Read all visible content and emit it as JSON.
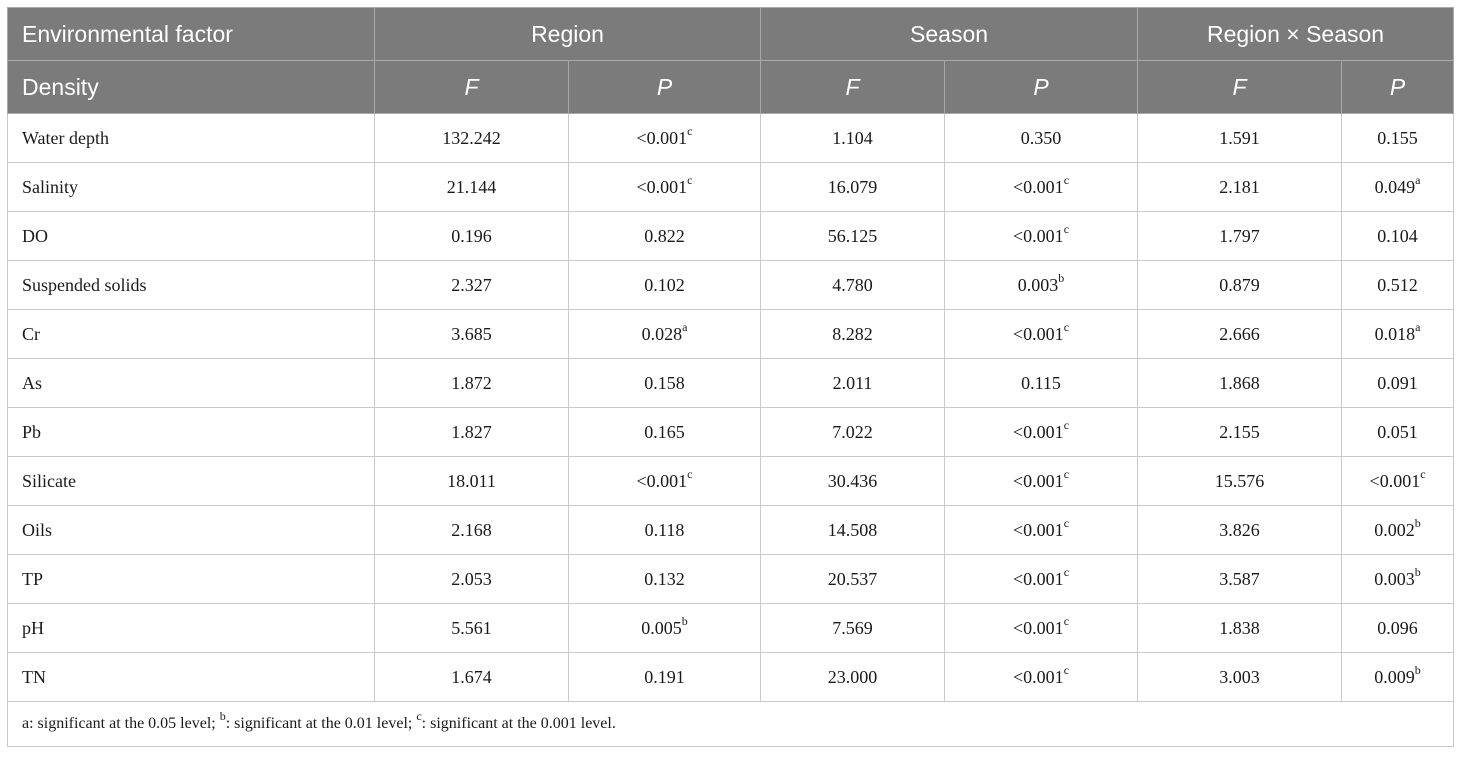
{
  "header": {
    "row1": {
      "first": "Environmental factor",
      "groups": [
        "Region",
        "Season",
        "Region × Season"
      ]
    },
    "row2": {
      "first": "Density",
      "cols": [
        "F",
        "P",
        "F",
        "P",
        "F",
        "P"
      ]
    }
  },
  "rows": [
    {
      "label": "Water depth",
      "cells": [
        {
          "v": "132.242",
          "s": ""
        },
        {
          "v": "<0.001",
          "s": "c"
        },
        {
          "v": "1.104",
          "s": ""
        },
        {
          "v": "0.350",
          "s": ""
        },
        {
          "v": "1.591",
          "s": ""
        },
        {
          "v": "0.155",
          "s": ""
        }
      ]
    },
    {
      "label": "Salinity",
      "cells": [
        {
          "v": "21.144",
          "s": ""
        },
        {
          "v": "<0.001",
          "s": "c"
        },
        {
          "v": "16.079",
          "s": ""
        },
        {
          "v": "<0.001",
          "s": "c"
        },
        {
          "v": "2.181",
          "s": ""
        },
        {
          "v": "0.049",
          "s": "a"
        }
      ]
    },
    {
      "label": "DO",
      "cells": [
        {
          "v": "0.196",
          "s": ""
        },
        {
          "v": "0.822",
          "s": ""
        },
        {
          "v": "56.125",
          "s": ""
        },
        {
          "v": "<0.001",
          "s": "c"
        },
        {
          "v": "1.797",
          "s": ""
        },
        {
          "v": "0.104",
          "s": ""
        }
      ]
    },
    {
      "label": "Suspended solids",
      "cells": [
        {
          "v": "2.327",
          "s": ""
        },
        {
          "v": "0.102",
          "s": ""
        },
        {
          "v": "4.780",
          "s": ""
        },
        {
          "v": "0.003",
          "s": "b"
        },
        {
          "v": "0.879",
          "s": ""
        },
        {
          "v": "0.512",
          "s": ""
        }
      ]
    },
    {
      "label": "Cr",
      "cells": [
        {
          "v": "3.685",
          "s": ""
        },
        {
          "v": "0.028",
          "s": "a"
        },
        {
          "v": "8.282",
          "s": ""
        },
        {
          "v": "<0.001",
          "s": "c"
        },
        {
          "v": "2.666",
          "s": ""
        },
        {
          "v": "0.018",
          "s": "a"
        }
      ]
    },
    {
      "label": "As",
      "cells": [
        {
          "v": "1.872",
          "s": ""
        },
        {
          "v": "0.158",
          "s": ""
        },
        {
          "v": "2.011",
          "s": ""
        },
        {
          "v": "0.115",
          "s": ""
        },
        {
          "v": "1.868",
          "s": ""
        },
        {
          "v": "0.091",
          "s": ""
        }
      ]
    },
    {
      "label": "Pb",
      "cells": [
        {
          "v": "1.827",
          "s": ""
        },
        {
          "v": "0.165",
          "s": ""
        },
        {
          "v": "7.022",
          "s": ""
        },
        {
          "v": "<0.001",
          "s": "c"
        },
        {
          "v": "2.155",
          "s": ""
        },
        {
          "v": "0.051",
          "s": ""
        }
      ]
    },
    {
      "label": "Silicate",
      "cells": [
        {
          "v": "18.011",
          "s": ""
        },
        {
          "v": "<0.001",
          "s": "c"
        },
        {
          "v": "30.436",
          "s": ""
        },
        {
          "v": "<0.001",
          "s": "c"
        },
        {
          "v": "15.576",
          "s": ""
        },
        {
          "v": "<0.001",
          "s": "c"
        }
      ]
    },
    {
      "label": "Oils",
      "cells": [
        {
          "v": "2.168",
          "s": ""
        },
        {
          "v": "0.118",
          "s": ""
        },
        {
          "v": "14.508",
          "s": ""
        },
        {
          "v": "<0.001",
          "s": "c"
        },
        {
          "v": "3.826",
          "s": ""
        },
        {
          "v": "0.002",
          "s": "b"
        }
      ]
    },
    {
      "label": "TP",
      "cells": [
        {
          "v": "2.053",
          "s": ""
        },
        {
          "v": "0.132",
          "s": ""
        },
        {
          "v": "20.537",
          "s": ""
        },
        {
          "v": "<0.001",
          "s": "c"
        },
        {
          "v": "3.587",
          "s": ""
        },
        {
          "v": "0.003",
          "s": "b"
        }
      ]
    },
    {
      "label": "pH",
      "cells": [
        {
          "v": "5.561",
          "s": ""
        },
        {
          "v": "0.005",
          "s": "b"
        },
        {
          "v": "7.569",
          "s": ""
        },
        {
          "v": "<0.001",
          "s": "c"
        },
        {
          "v": "1.838",
          "s": ""
        },
        {
          "v": "0.096",
          "s": ""
        }
      ]
    },
    {
      "label": "TN",
      "cells": [
        {
          "v": "1.674",
          "s": ""
        },
        {
          "v": "0.191",
          "s": ""
        },
        {
          "v": "23.000",
          "s": ""
        },
        {
          "v": "<0.001",
          "s": "c"
        },
        {
          "v": "3.003",
          "s": ""
        },
        {
          "v": "0.009",
          "s": "b"
        }
      ]
    }
  ],
  "footnote": [
    {
      "sup": "",
      "text": "a: significant at the 0.05 level; "
    },
    {
      "sup": "b",
      "text": ": significant at the 0.01 level; "
    },
    {
      "sup": "c",
      "text": ": significant at the 0.001 level."
    }
  ]
}
